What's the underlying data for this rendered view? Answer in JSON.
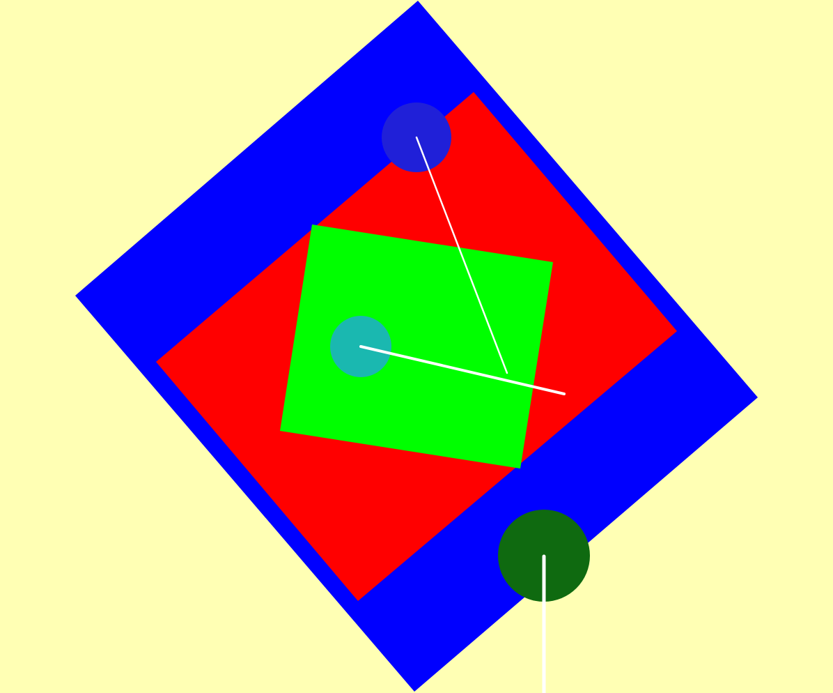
{
  "scene": {
    "background": "#ffffb4",
    "shapes": [
      {
        "name": "outer-square",
        "kind": "square",
        "color": "#0000ff"
      },
      {
        "name": "middle-square",
        "kind": "square",
        "color": "#ff0000"
      },
      {
        "name": "inner-square",
        "kind": "square",
        "color": "#00ff00"
      }
    ],
    "pointers": [
      {
        "name": "top-dial",
        "circle_color": "#2020d8",
        "needle_color": "#ffffff"
      },
      {
        "name": "center-dial",
        "circle_color": "#1ab8b0",
        "needle_color": "#ffffff"
      },
      {
        "name": "bottom-dial",
        "circle_color": "#0f6a10",
        "needle_color": "#ffffff"
      }
    ]
  }
}
